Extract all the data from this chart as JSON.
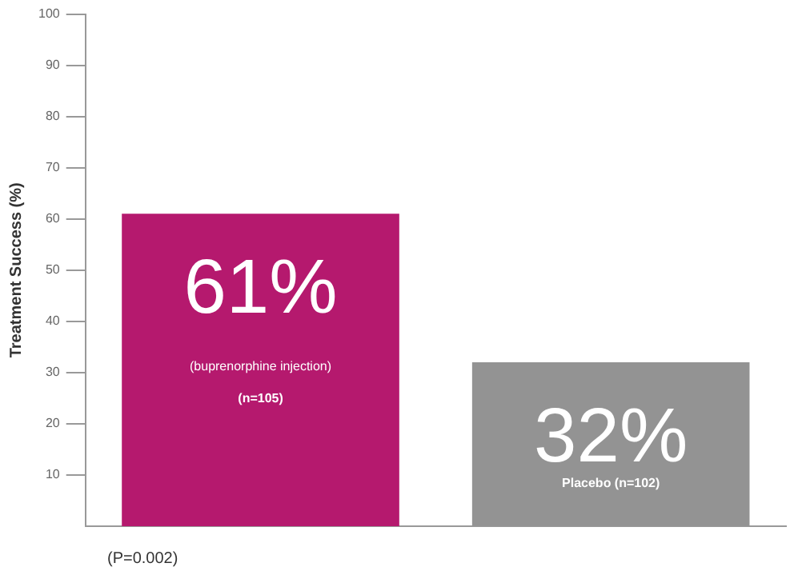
{
  "chart_data": {
    "type": "bar",
    "ylabel": "Treatment Success (%)",
    "categories": [
      "(buprenorphine injection)\n(n=105)",
      "Placebo (n=102)"
    ],
    "values": [
      61,
      32
    ],
    "colors": [
      "#b5196e",
      "#939393"
    ],
    "value_labels": [
      "61%",
      "32%"
    ],
    "ylim": [
      0,
      100
    ],
    "yticks": [
      10,
      20,
      30,
      40,
      50,
      60,
      70,
      80,
      90,
      100
    ],
    "grid": false,
    "legend": false,
    "tick_labels": "y",
    "annotations": [
      "(P=0.002)"
    ]
  }
}
